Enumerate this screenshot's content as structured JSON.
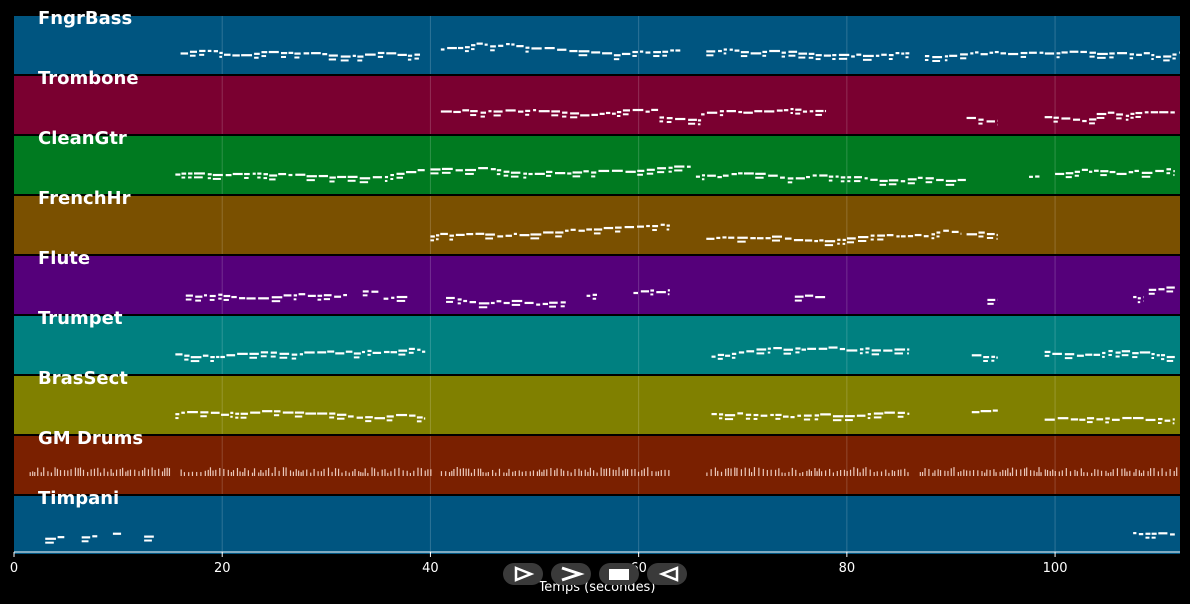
{
  "chart_data": {
    "type": "piano-roll",
    "xlabel": "Temps (secondes)",
    "xlim": [
      0,
      112
    ],
    "x_ticks": [
      0,
      20,
      40,
      60,
      80,
      100
    ],
    "tracks": [
      {
        "name": "FngrBass",
        "color": "#005580",
        "segments": [
          [
            16,
            39
          ],
          [
            41,
            64
          ],
          [
            66.5,
            86
          ],
          [
            87.5,
            112
          ]
        ]
      },
      {
        "name": "Trombone",
        "color": "#7a0030",
        "segments": [
          [
            41,
            62
          ],
          [
            62,
            66
          ],
          [
            66,
            78
          ],
          [
            91.5,
            94.5
          ],
          [
            99,
            104
          ],
          [
            104,
            111.5
          ]
        ]
      },
      {
        "name": "CleanGtr",
        "color": "#007a20",
        "segments": [
          [
            15.5,
            39.5
          ],
          [
            40,
            65
          ],
          [
            65.5,
            91.5
          ],
          [
            97.5,
            98.5
          ],
          [
            100,
            111.5
          ]
        ]
      },
      {
        "name": "FrenchHr",
        "color": "#7a5000",
        "segments": [
          [
            40,
            63
          ],
          [
            66.5,
            91
          ],
          [
            91.5,
            94.5
          ]
        ]
      },
      {
        "name": "Flute",
        "color": "#55007a",
        "segments": [
          [
            16.5,
            32
          ],
          [
            33.5,
            35
          ],
          [
            35.5,
            38
          ],
          [
            41.5,
            53
          ],
          [
            55,
            56
          ],
          [
            59.5,
            63
          ],
          [
            75,
            78
          ],
          [
            93.5,
            94.5
          ],
          [
            107.5,
            108.5
          ],
          [
            109,
            111.5
          ]
        ]
      },
      {
        "name": "Trumpet",
        "color": "#008080",
        "segments": [
          [
            15.5,
            39.5
          ],
          [
            67,
            86
          ],
          [
            92,
            94.5
          ],
          [
            99,
            111.5
          ]
        ]
      },
      {
        "name": "BrasSect",
        "color": "#808000",
        "segments": [
          [
            15.5,
            39.5
          ],
          [
            67,
            86
          ],
          [
            92,
            94.5
          ],
          [
            99,
            111.5
          ]
        ]
      },
      {
        "name": "GM Drums",
        "color": "#7a2000",
        "segments": [
          [
            1.5,
            15
          ],
          [
            16,
            40
          ],
          [
            41,
            63
          ],
          [
            66.5,
            86
          ],
          [
            87,
            112
          ]
        ]
      },
      {
        "name": "Timpani",
        "color": "#005580",
        "segments": [
          [
            3,
            5
          ],
          [
            6.5,
            8
          ],
          [
            9.5,
            10.5
          ],
          [
            12.5,
            13.5
          ],
          [
            107.5,
            111.5
          ]
        ]
      }
    ]
  },
  "controls": {
    "play": "play-triangle-icon",
    "forward": "chevron-right-icon",
    "stop": "stop-square-icon",
    "back": "rewind-triangle-icon"
  }
}
